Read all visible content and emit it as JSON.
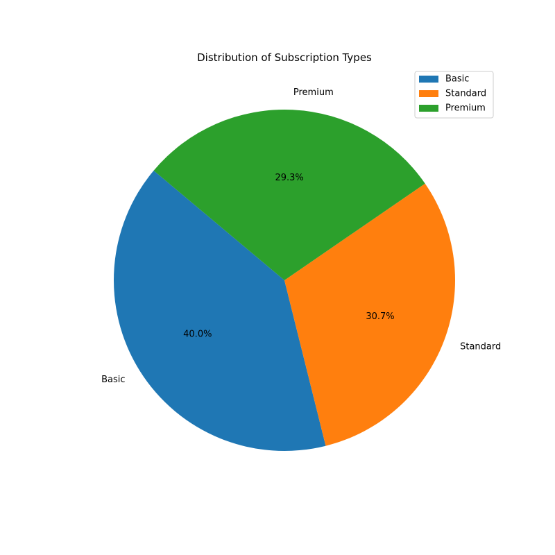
{
  "chart_data": {
    "type": "pie",
    "title": "Distribution of Subscription Types",
    "categories": [
      "Basic",
      "Standard",
      "Premium"
    ],
    "values": [
      40.0,
      30.7,
      29.3
    ],
    "value_labels": [
      "40.0%",
      "30.7%",
      "29.3%"
    ],
    "colors": [
      "#1f77b4",
      "#ff7f0e",
      "#2ca02c"
    ],
    "start_angle_deg": 140,
    "direction": "counterclockwise",
    "legend": {
      "position": "top-right",
      "entries": [
        "Basic",
        "Standard",
        "Premium"
      ]
    }
  }
}
